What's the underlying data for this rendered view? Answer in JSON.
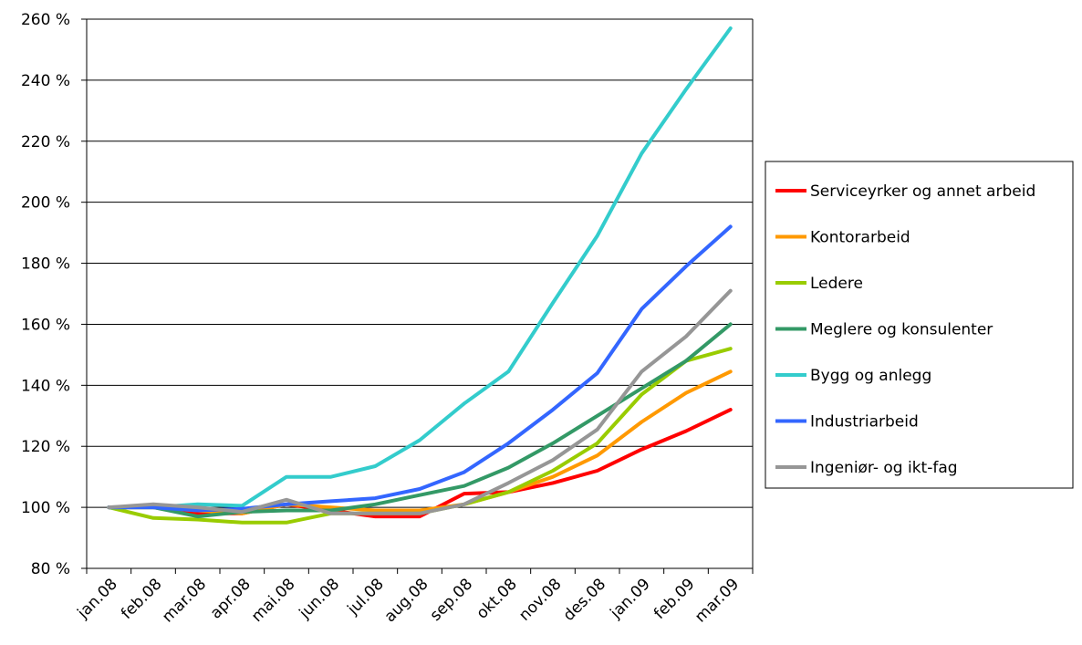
{
  "chart_data": {
    "type": "line",
    "title": "",
    "xlabel": "",
    "ylabel": "",
    "categories": [
      "jan.08",
      "feb.08",
      "mar.08",
      "apr.08",
      "mai.08",
      "jun.08",
      "jul.08",
      "aug.08",
      "sep.08",
      "okt.08",
      "nov.08",
      "des.08",
      "jan.09",
      "feb.09",
      "mar.09"
    ],
    "ylim": [
      80,
      260
    ],
    "yticks": [
      80,
      100,
      120,
      140,
      160,
      180,
      200,
      220,
      240,
      260
    ],
    "ytick_labels": [
      "80 %",
      "100 %",
      "120 %",
      "140 %",
      "160 %",
      "180 %",
      "200 %",
      "220 %",
      "240 %",
      "260 %"
    ],
    "grid": "horizontal",
    "legend_position": "right",
    "series": [
      {
        "name": "Serviceyrker og annet arbeid",
        "color": "#ff0000",
        "values": [
          100,
          100,
          98,
          98,
          101,
          99,
          97,
          97,
          104.5,
          105,
          108,
          112,
          119,
          125,
          132
        ]
      },
      {
        "name": "Kontorarbeid",
        "color": "#ff9900",
        "values": [
          100,
          100,
          99,
          98,
          101,
          100,
          99,
          99,
          101,
          105,
          110,
          117,
          128,
          137.5,
          144.5
        ]
      },
      {
        "name": "Ledere",
        "color": "#99cc00",
        "values": [
          100,
          96.5,
          96,
          95,
          95,
          98,
          98,
          98,
          101,
          105,
          112,
          121,
          137,
          148,
          152
        ]
      },
      {
        "name": "Meglere og konsulenter",
        "color": "#339966",
        "values": [
          100,
          100,
          97,
          98.5,
          99,
          99,
          101,
          104,
          107,
          113,
          121,
          130,
          139,
          148,
          160
        ]
      },
      {
        "name": "Bygg og anlegg",
        "color": "#33cccc",
        "values": [
          100,
          100,
          101,
          100.5,
          110,
          110,
          113.5,
          122,
          134,
          144.5,
          167,
          189,
          216,
          237,
          257
        ]
      },
      {
        "name": "Industriarbeid",
        "color": "#3366ff",
        "values": [
          100,
          100,
          99,
          99.5,
          101,
          102,
          103,
          106,
          111.5,
          121,
          132,
          144,
          165,
          179,
          192
        ]
      },
      {
        "name": "Ingeniør- og ikt-fag",
        "color": "#969696",
        "values": [
          100,
          101,
          100,
          98.5,
          102.5,
          98,
          98,
          98,
          101,
          108,
          115.5,
          125.5,
          144.5,
          156,
          171
        ]
      }
    ]
  }
}
